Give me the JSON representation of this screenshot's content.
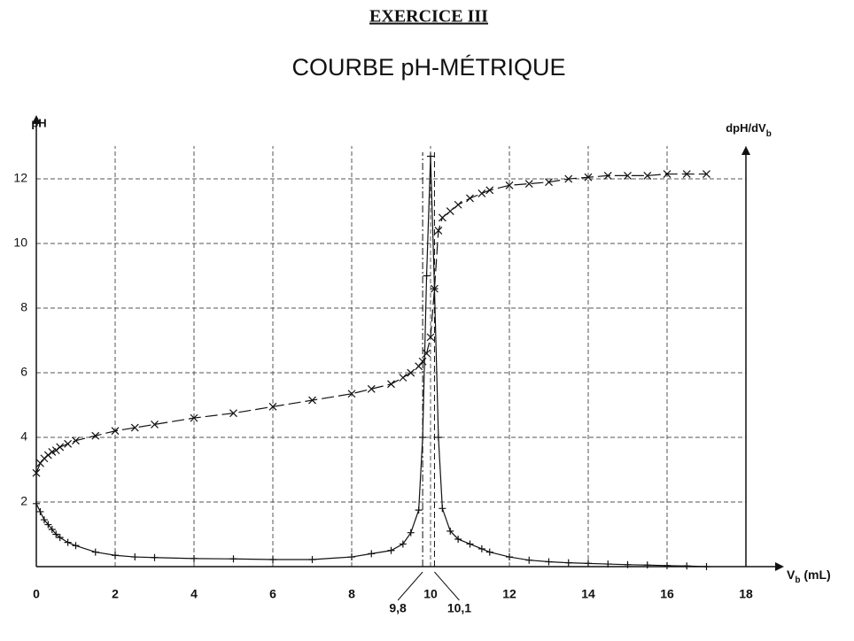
{
  "header": {
    "exercise": "EXERCICE III"
  },
  "chart_data": {
    "type": "line",
    "title": "COURBE pH-MÉTRIQUE",
    "ylabel": "pH",
    "y2label": [
      "dpH/dV",
      "b"
    ],
    "xlabel": [
      "V",
      "b",
      " (mL)"
    ],
    "x": [
      0,
      0.1,
      0.2,
      0.3,
      0.4,
      0.5,
      0.6,
      0.8,
      1,
      1.5,
      2,
      2.5,
      3,
      4,
      5,
      6,
      7,
      8,
      8.5,
      9,
      9.3,
      9.5,
      9.7,
      9.8,
      9.9,
      10,
      10.1,
      10.2,
      10.3,
      10.5,
      10.7,
      11,
      11.3,
      11.5,
      12,
      12.5,
      13,
      13.5,
      14,
      14.5,
      15,
      15.5,
      16,
      16.5,
      17
    ],
    "series": [
      {
        "color": "#111",
        "marker": "x",
        "dashed": true,
        "values": [
          2.9,
          3.2,
          3.35,
          3.45,
          3.55,
          3.6,
          3.7,
          3.8,
          3.9,
          4.05,
          4.2,
          4.3,
          4.4,
          4.6,
          4.75,
          4.95,
          5.15,
          5.35,
          5.5,
          5.65,
          5.85,
          6.0,
          6.2,
          6.35,
          6.6,
          7.1,
          8.6,
          10.4,
          10.8,
          11.0,
          11.2,
          11.4,
          11.55,
          11.65,
          11.8,
          11.85,
          11.9,
          12.0,
          12.05,
          12.1,
          12.1,
          12.1,
          12.15,
          12.15,
          12.15
        ]
      },
      {
        "color": "#111",
        "marker": "+",
        "dashed": false,
        "values": [
          1.95,
          1.7,
          1.45,
          1.3,
          1.15,
          1.0,
          0.9,
          0.75,
          0.65,
          0.45,
          0.35,
          0.3,
          0.28,
          0.25,
          0.24,
          0.22,
          0.22,
          0.3,
          0.4,
          0.5,
          0.7,
          1.05,
          1.75,
          4,
          9,
          12.7,
          8.6,
          4,
          1.8,
          1.1,
          0.85,
          0.7,
          0.55,
          0.45,
          0.3,
          0.2,
          0.15,
          0.12,
          0.1,
          0.08,
          0.06,
          0.05,
          0.03,
          0.02,
          0.0
        ]
      }
    ],
    "xlim": [
      0,
      18
    ],
    "xticks": [
      0,
      2,
      4,
      6,
      8,
      10,
      12,
      14,
      16,
      18
    ],
    "ylim": [
      0,
      13.7
    ],
    "yticks": [
      2,
      4,
      6,
      8,
      10,
      12
    ],
    "grid": true,
    "annotations": [
      {
        "text": "9,8",
        "x": 9.8
      },
      {
        "text": "10,1",
        "x": 10.1
      }
    ]
  }
}
